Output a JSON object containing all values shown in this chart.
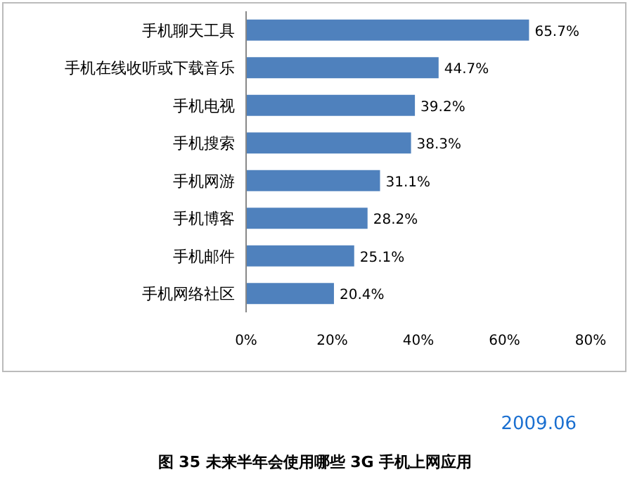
{
  "chart_data": {
    "type": "bar",
    "orientation": "horizontal",
    "title": "图 35  未来半年会使用哪些 3G 手机上网应用",
    "categories": [
      "手机聊天工具",
      "手机在线收听或下载音乐",
      "手机电视",
      "手机搜索",
      "手机网游",
      "手机博客",
      "手机邮件",
      "手机网络社区"
    ],
    "values": [
      65.7,
      44.7,
      39.2,
      38.3,
      31.1,
      28.2,
      25.1,
      20.4
    ],
    "value_labels": [
      "65.7%",
      "44.7%",
      "39.2%",
      "38.3%",
      "31.1%",
      "28.2%",
      "25.1%",
      "20.4%"
    ],
    "color": "#4f81bd",
    "xlim": [
      0,
      80
    ],
    "xticks": [
      {
        "value": 0,
        "label": "0%"
      },
      {
        "value": 20,
        "label": "20%"
      },
      {
        "value": 40,
        "label": "40%"
      },
      {
        "value": 60,
        "label": "60%"
      },
      {
        "value": 80,
        "label": "80%"
      }
    ],
    "grid": false,
    "annotations": [
      "2009.06"
    ]
  }
}
